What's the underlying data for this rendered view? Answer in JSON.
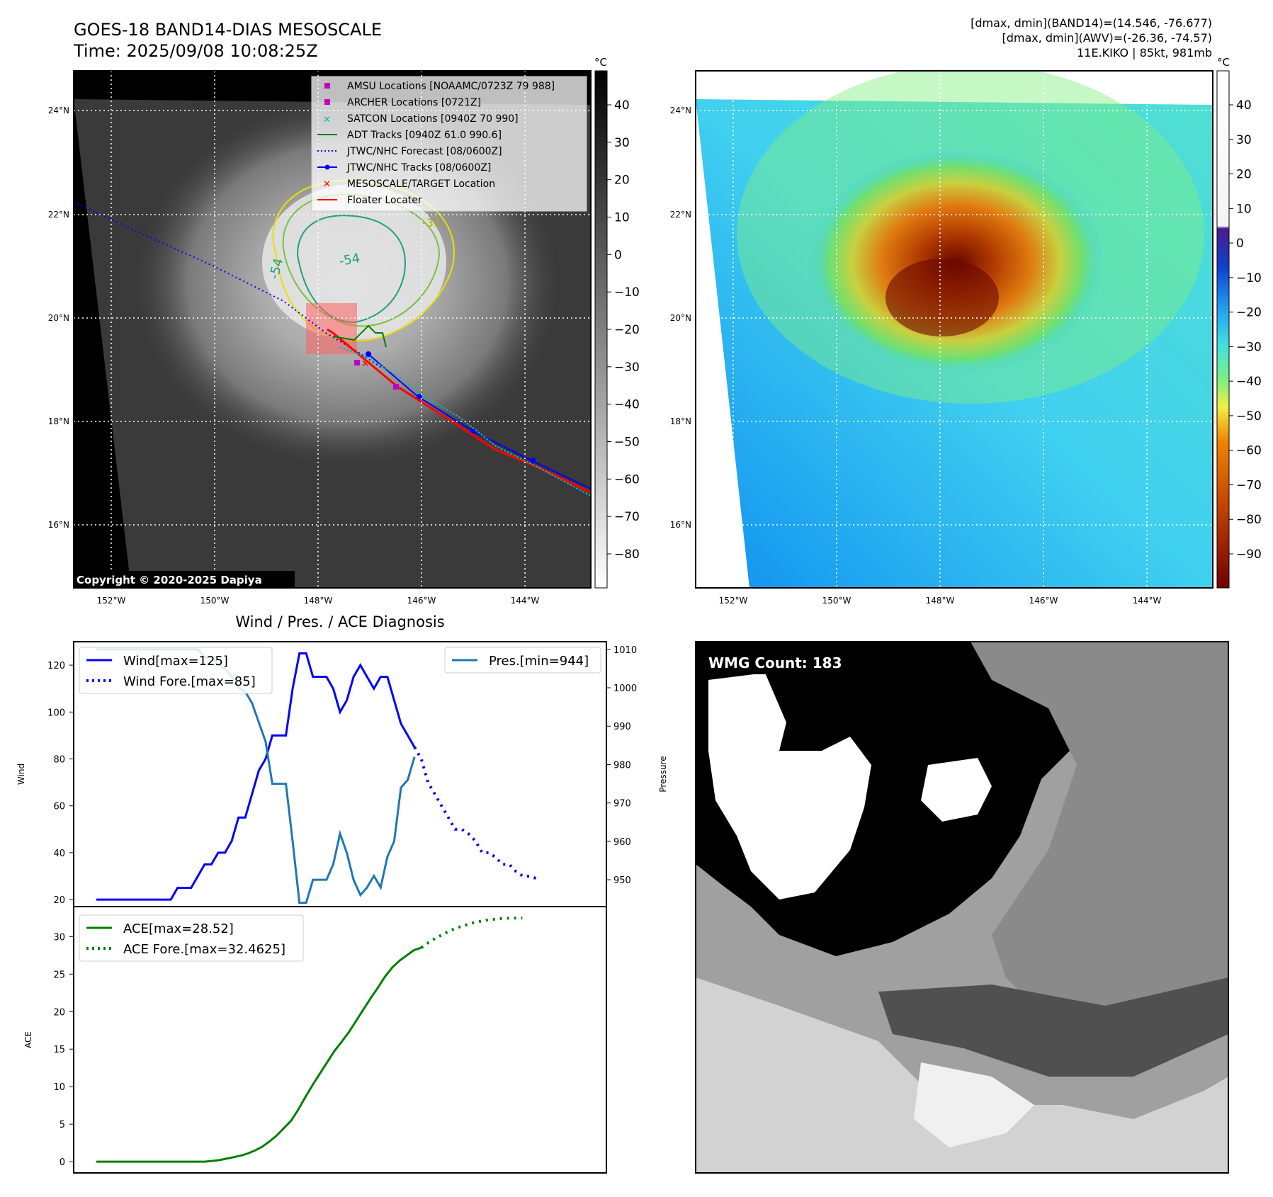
{
  "header": {
    "title": "GOES-18 BAND14-DIAS MESOSCALE",
    "time": "Time: 2025/09/08 10:08:25Z",
    "info": [
      "[dmax, dmin](BAND14)=(14.546, -76.677)",
      "[dmax, dmin](AWV)=(-26.36, -74.57)",
      "11E.KIKO | 85kt, 981mb"
    ]
  },
  "map": {
    "lat_labels": [
      "24°N",
      "22°N",
      "20°N",
      "18°N",
      "16°N"
    ],
    "lon_labels": [
      "152°W",
      "150°W",
      "148°W",
      "146°W",
      "144°W"
    ],
    "copyright": "Copyright © 2020-2025 Dapiya",
    "contour_labels": [
      "-54",
      "-54",
      "-31"
    ],
    "legend": [
      "AMSU Locations [NOAAMC/0723Z 79 988]",
      "ARCHER Locations [0721Z]",
      "SATCON Locations [0940Z 70 990]",
      "ADT Tracks [0940Z 61.0 990.6]",
      "JTWC/NHC Forecast [08/0600Z]",
      "JTWC/NHC Tracks [08/0600Z]",
      "MESOSCALE/TARGET Location",
      "Floater Locater"
    ],
    "colors": {
      "amsu": "#c000c0",
      "archer": "#c000c0",
      "satcon": "#20b0b0",
      "adt": "#008000",
      "forecast": "#0000ff",
      "track": "#0000ff",
      "target": "#ff0000",
      "floater": "#ff0000"
    }
  },
  "colorbar1": {
    "unit": "°C",
    "ticks": [
      "40",
      "30",
      "20",
      "10",
      "0",
      "−10",
      "−20",
      "−30",
      "−40",
      "−50",
      "−60",
      "−70",
      "−80"
    ]
  },
  "colorbar2": {
    "unit": "°C",
    "ticks": [
      "40",
      "30",
      "20",
      "10",
      "0",
      "−10",
      "−20",
      "−30",
      "−40",
      "−50",
      "−60",
      "−70",
      "−80",
      "−90"
    ]
  },
  "wmg": {
    "label": "WMG Count: 183"
  },
  "chart_data": [
    {
      "type": "line",
      "title": "Wind / Pres. / ACE Diagnosis",
      "ylabel": "Wind",
      "ylabel_right": "Pressure",
      "ylim": [
        17,
        130
      ],
      "ylim_right": [
        943,
        1012
      ],
      "yticks": [
        20,
        40,
        60,
        80,
        100,
        120
      ],
      "yticks_right": [
        950,
        960,
        970,
        980,
        990,
        1000,
        1010
      ],
      "series": [
        {
          "name": "Wind[max=125]",
          "color": "#0000ff",
          "style": "solid",
          "axis": "left",
          "values": [
            20,
            20,
            20,
            20,
            20,
            20,
            20,
            20,
            20,
            20,
            20,
            20,
            25,
            25,
            25,
            30,
            35,
            35,
            40,
            40,
            45,
            55,
            55,
            65,
            75,
            80,
            90,
            90,
            90,
            110,
            125,
            125,
            115,
            115,
            115,
            110,
            100,
            105,
            115,
            120,
            115,
            110,
            115,
            115,
            105,
            95,
            90,
            85
          ]
        },
        {
          "name": "Wind Fore.[max=85]",
          "color": "#0000ff",
          "style": "dotted",
          "axis": "left",
          "x_start": 47,
          "values": [
            85,
            80,
            70,
            65,
            60,
            55,
            50,
            50,
            48,
            45,
            40,
            40,
            38,
            35,
            35,
            32,
            30,
            30,
            29
          ]
        },
        {
          "name": "Pres.[min=944]",
          "color": "#1f77b4",
          "style": "solid",
          "axis": "right",
          "values": [
            1010,
            1010,
            1010,
            1010,
            1010,
            1010,
            1010,
            1010,
            1010,
            1010,
            1010,
            1010,
            1010,
            1010,
            1010,
            1010,
            1008,
            1008,
            1006,
            1005,
            1003,
            1000,
            999,
            996,
            991,
            986,
            975,
            975,
            975,
            960,
            944,
            944,
            950,
            950,
            950,
            954,
            962,
            957,
            950,
            946,
            948,
            951,
            948,
            956,
            960,
            974,
            976,
            982
          ]
        }
      ]
    },
    {
      "type": "line",
      "ylabel": "ACE",
      "ylim": [
        -1.5,
        34
      ],
      "yticks": [
        0,
        5,
        10,
        15,
        20,
        25,
        30
      ],
      "series": [
        {
          "name": "ACE[max=28.52]",
          "color": "#008000",
          "style": "solid",
          "values": [
            0,
            0,
            0,
            0,
            0,
            0,
            0,
            0,
            0,
            0,
            0,
            0,
            0,
            0,
            0,
            0,
            0.1,
            0.2,
            0.4,
            0.6,
            0.8,
            1.1,
            1.5,
            2.0,
            2.7,
            3.5,
            4.5,
            5.5,
            7.0,
            8.7,
            10.3,
            11.8,
            13.3,
            14.8,
            16.0,
            17.3,
            18.8,
            20.3,
            21.8,
            23.2,
            24.7,
            25.9,
            26.8,
            27.5,
            28.2,
            28.52
          ]
        },
        {
          "name": "ACE Fore.[max=32.4625]",
          "color": "#008000",
          "style": "dotted",
          "x_start": 45,
          "values": [
            28.52,
            29.2,
            29.8,
            30.3,
            30.8,
            31.2,
            31.5,
            31.8,
            32.0,
            32.2,
            32.3,
            32.4,
            32.45,
            32.4625,
            32.4625
          ]
        }
      ]
    }
  ]
}
